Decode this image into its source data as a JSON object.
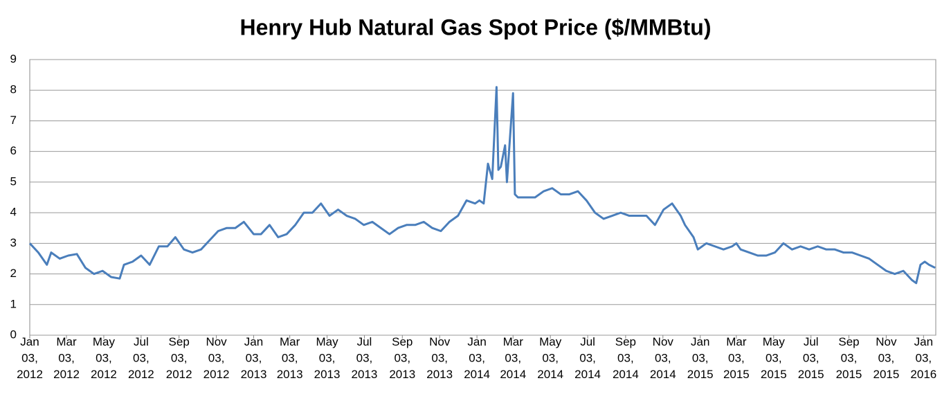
{
  "chart_data": {
    "type": "line",
    "title": "Henry Hub Natural Gas Spot Price ($/MMBtu)",
    "xlim": [
      "2012-01-03",
      "2016-01-23"
    ],
    "xticks": [
      {
        "value": "2012-01-03",
        "label": "Jan 03, 2012"
      },
      {
        "value": "2012-03-03",
        "label": "Mar 03, 2012"
      },
      {
        "value": "2012-05-03",
        "label": "May 03, 2012"
      },
      {
        "value": "2012-07-03",
        "label": "Jul 03, 2012"
      },
      {
        "value": "2012-09-03",
        "label": "Sep 03, 2012"
      },
      {
        "value": "2012-11-03",
        "label": "Nov 03, 2012"
      },
      {
        "value": "2013-01-03",
        "label": "Jan 03, 2013"
      },
      {
        "value": "2013-03-03",
        "label": "Mar 03, 2013"
      },
      {
        "value": "2013-05-03",
        "label": "May 03, 2013"
      },
      {
        "value": "2013-07-03",
        "label": "Jul 03, 2013"
      },
      {
        "value": "2013-09-03",
        "label": "Sep 03, 2013"
      },
      {
        "value": "2013-11-03",
        "label": "Nov 03, 2013"
      },
      {
        "value": "2014-01-03",
        "label": "Jan 03, 2014"
      },
      {
        "value": "2014-03-03",
        "label": "Mar 03, 2014"
      },
      {
        "value": "2014-05-03",
        "label": "May 03, 2014"
      },
      {
        "value": "2014-07-03",
        "label": "Jul 03, 2014"
      },
      {
        "value": "2014-09-03",
        "label": "Sep 03, 2014"
      },
      {
        "value": "2014-11-03",
        "label": "Nov 03, 2014"
      },
      {
        "value": "2015-01-03",
        "label": "Jan 03, 2015"
      },
      {
        "value": "2015-03-03",
        "label": "Mar 03, 2015"
      },
      {
        "value": "2015-05-03",
        "label": "May 03, 2015"
      },
      {
        "value": "2015-07-03",
        "label": "Jul 03, 2015"
      },
      {
        "value": "2015-09-03",
        "label": "Sep 03, 2015"
      },
      {
        "value": "2015-11-03",
        "label": "Nov 03, 2015"
      },
      {
        "value": "2016-01-03",
        "label": "Jan 03, 2016"
      }
    ],
    "ylim": [
      0,
      9
    ],
    "yticks": [
      0,
      1,
      2,
      3,
      4,
      5,
      6,
      7,
      8,
      9
    ],
    "grid": true,
    "series": [
      {
        "name": "Henry Hub",
        "color": "#4a7ebb",
        "x": [
          "2012-01-03",
          "2012-01-17",
          "2012-01-31",
          "2012-02-07",
          "2012-02-21",
          "2012-03-06",
          "2012-03-20",
          "2012-04-03",
          "2012-04-17",
          "2012-05-01",
          "2012-05-15",
          "2012-05-29",
          "2012-06-05",
          "2012-06-19",
          "2012-07-03",
          "2012-07-17",
          "2012-08-01",
          "2012-08-15",
          "2012-08-28",
          "2012-09-11",
          "2012-09-25",
          "2012-10-09",
          "2012-10-23",
          "2012-11-06",
          "2012-11-20",
          "2012-12-04",
          "2012-12-18",
          "2013-01-03",
          "2013-01-15",
          "2013-01-29",
          "2013-02-12",
          "2013-02-26",
          "2013-03-12",
          "2013-03-26",
          "2013-04-09",
          "2013-04-23",
          "2013-05-07",
          "2013-05-21",
          "2013-06-04",
          "2013-06-18",
          "2013-07-02",
          "2013-07-16",
          "2013-07-30",
          "2013-08-13",
          "2013-08-27",
          "2013-09-10",
          "2013-09-24",
          "2013-10-08",
          "2013-10-22",
          "2013-11-05",
          "2013-11-19",
          "2013-12-03",
          "2013-12-17",
          "2013-12-31",
          "2014-01-07",
          "2014-01-14",
          "2014-01-21",
          "2014-01-28",
          "2014-02-04",
          "2014-02-07",
          "2014-02-11",
          "2014-02-18",
          "2014-02-21",
          "2014-03-03",
          "2014-03-06",
          "2014-03-11",
          "2014-03-25",
          "2014-04-08",
          "2014-04-22",
          "2014-05-06",
          "2014-05-20",
          "2014-06-03",
          "2014-06-17",
          "2014-07-01",
          "2014-07-15",
          "2014-07-29",
          "2014-08-12",
          "2014-08-26",
          "2014-09-09",
          "2014-09-23",
          "2014-10-07",
          "2014-10-21",
          "2014-11-04",
          "2014-11-18",
          "2014-12-02",
          "2014-12-09",
          "2014-12-23",
          "2014-12-30",
          "2015-01-13",
          "2015-01-27",
          "2015-02-10",
          "2015-02-24",
          "2015-03-03",
          "2015-03-10",
          "2015-03-24",
          "2015-04-07",
          "2015-04-21",
          "2015-05-05",
          "2015-05-19",
          "2015-06-02",
          "2015-06-16",
          "2015-06-30",
          "2015-07-14",
          "2015-07-28",
          "2015-08-11",
          "2015-08-25",
          "2015-09-08",
          "2015-09-22",
          "2015-10-06",
          "2015-10-20",
          "2015-11-03",
          "2015-11-17",
          "2015-12-01",
          "2015-12-15",
          "2015-12-22",
          "2015-12-29",
          "2016-01-05",
          "2016-01-12",
          "2016-01-22"
        ],
        "values": [
          3.0,
          2.7,
          2.3,
          2.7,
          2.5,
          2.6,
          2.65,
          2.2,
          2.0,
          2.1,
          1.9,
          1.85,
          2.3,
          2.4,
          2.6,
          2.3,
          2.9,
          2.9,
          3.2,
          2.8,
          2.7,
          2.8,
          3.1,
          3.4,
          3.5,
          3.5,
          3.7,
          3.3,
          3.3,
          3.6,
          3.2,
          3.3,
          3.6,
          4.0,
          4.0,
          4.3,
          3.9,
          4.1,
          3.9,
          3.8,
          3.6,
          3.7,
          3.5,
          3.3,
          3.5,
          3.6,
          3.6,
          3.7,
          3.5,
          3.4,
          3.7,
          3.9,
          4.4,
          4.3,
          4.4,
          4.3,
          5.6,
          5.1,
          8.1,
          5.4,
          5.5,
          6.2,
          5.0,
          7.9,
          4.6,
          4.5,
          4.5,
          4.5,
          4.7,
          4.8,
          4.6,
          4.6,
          4.7,
          4.4,
          4.0,
          3.8,
          3.9,
          4.0,
          3.9,
          3.9,
          3.9,
          3.6,
          4.1,
          4.3,
          3.9,
          3.6,
          3.2,
          2.8,
          3.0,
          2.9,
          2.8,
          2.9,
          3.0,
          2.8,
          2.7,
          2.6,
          2.6,
          2.7,
          3.0,
          2.8,
          2.9,
          2.8,
          2.9,
          2.8,
          2.8,
          2.7,
          2.7,
          2.6,
          2.5,
          2.3,
          2.1,
          2.0,
          2.1,
          1.8,
          1.7,
          2.3,
          2.4,
          2.3,
          2.2
        ]
      }
    ]
  }
}
